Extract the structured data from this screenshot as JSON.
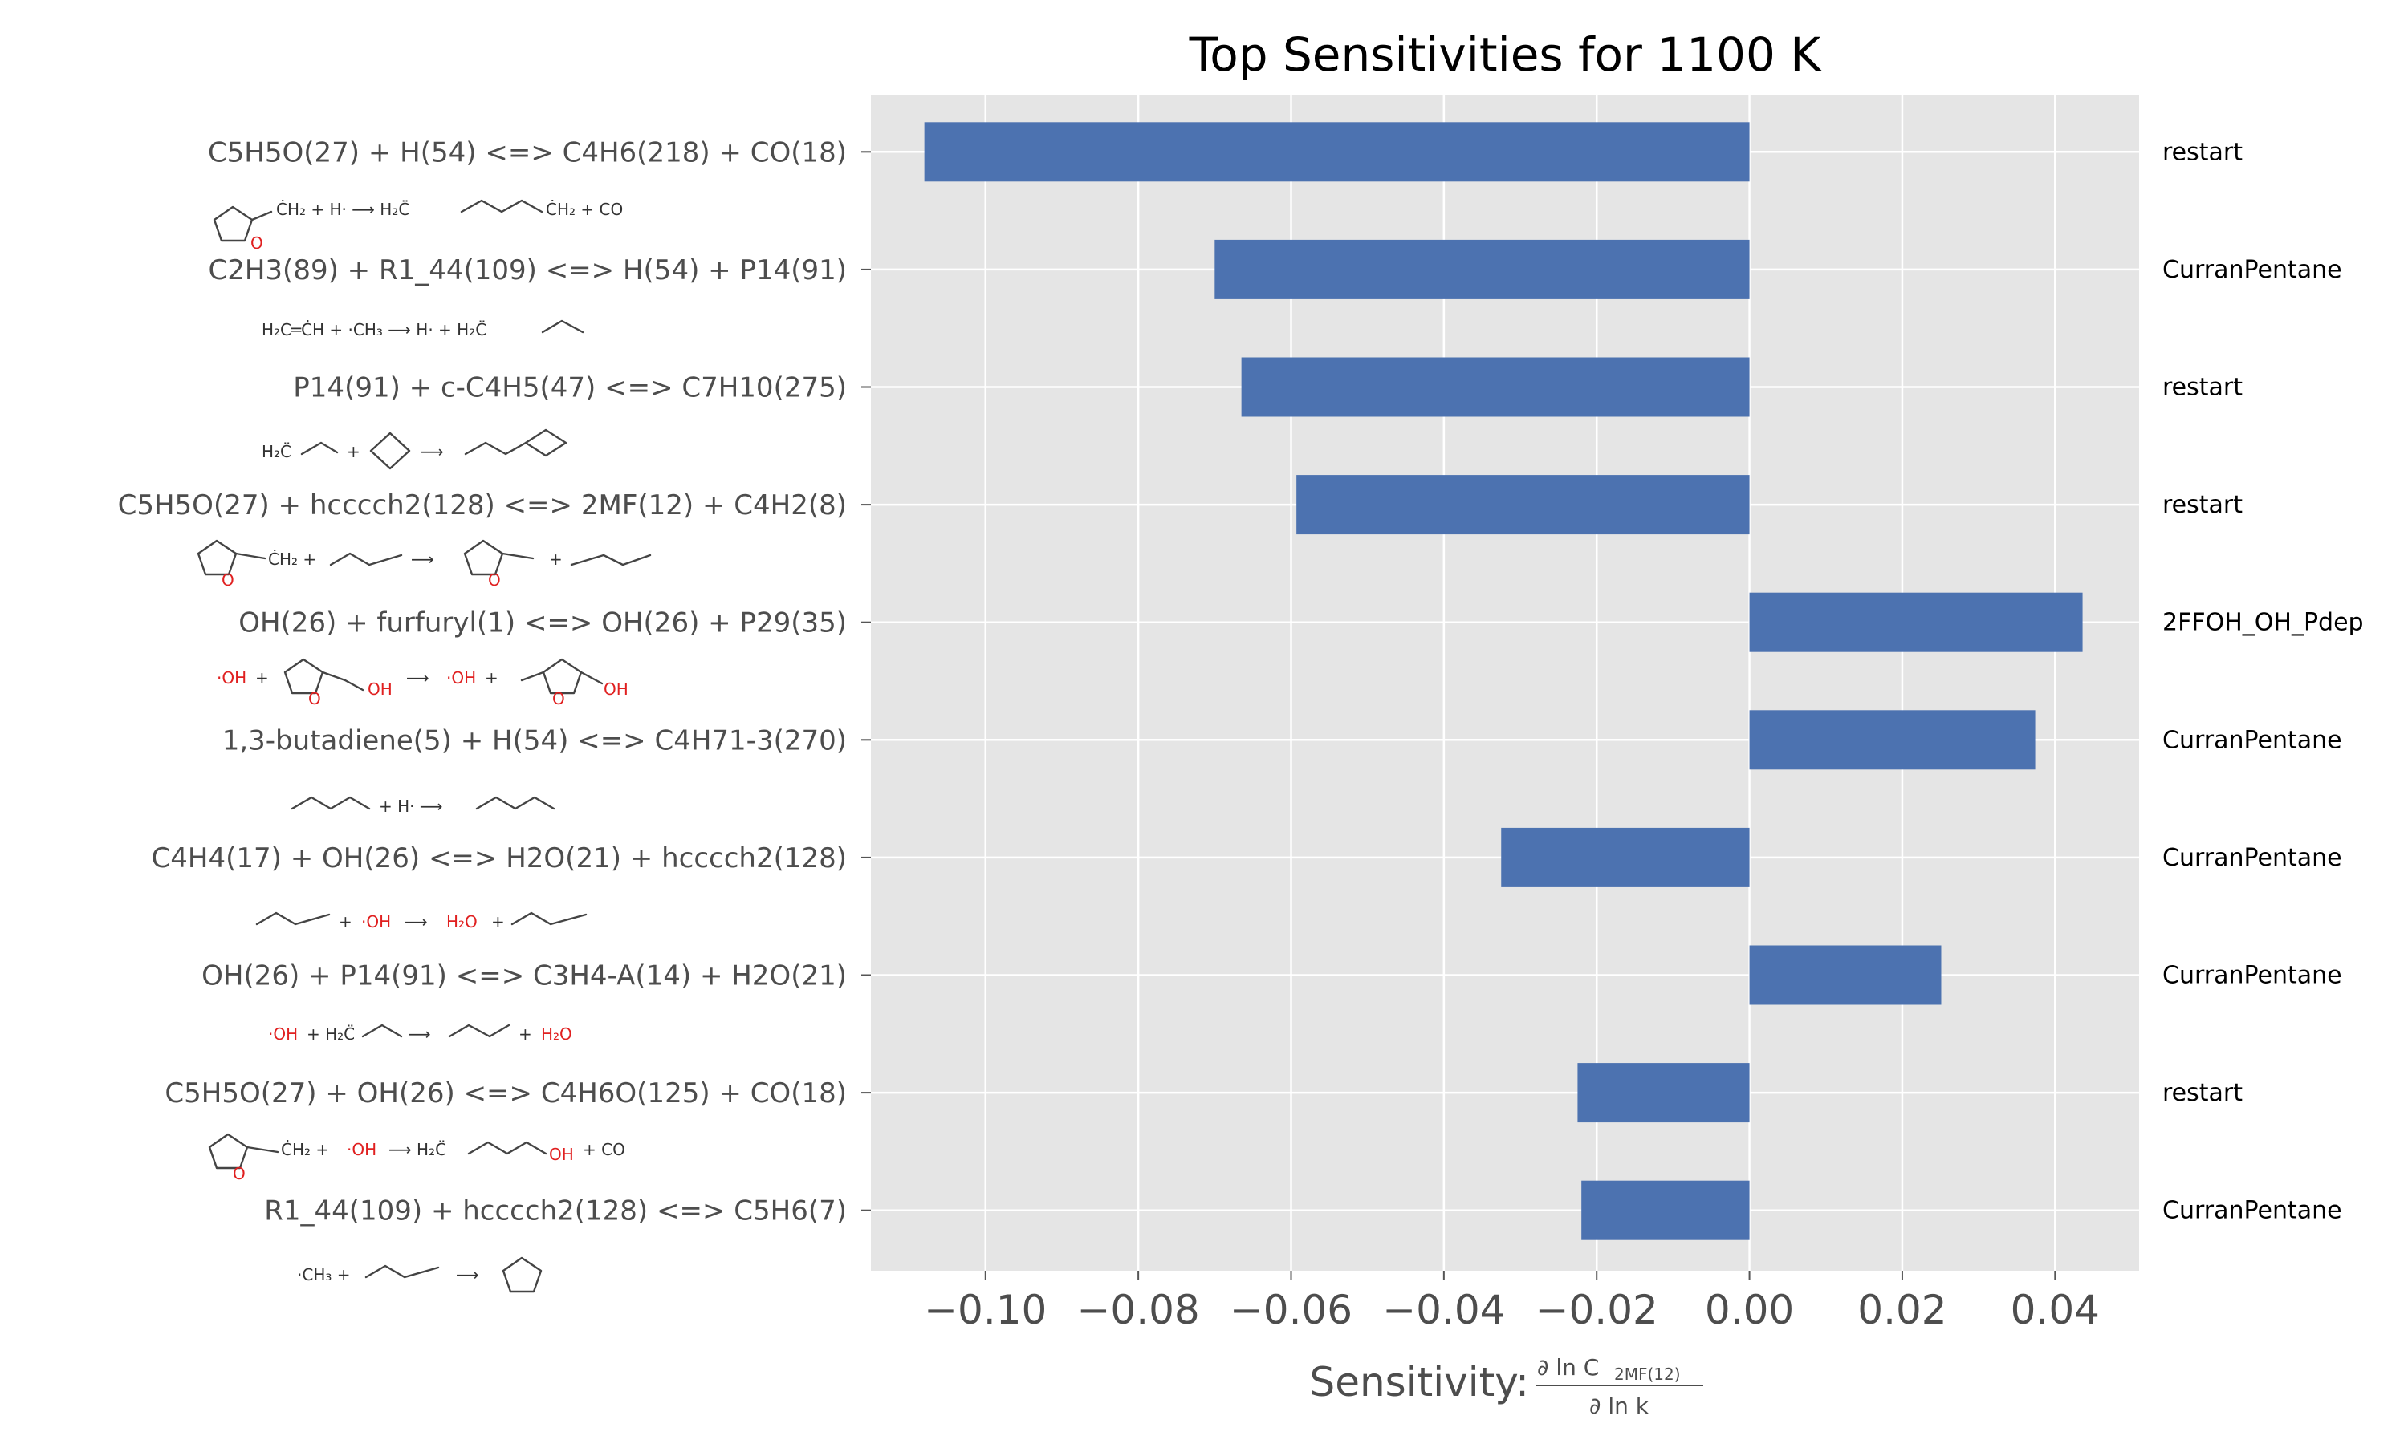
{
  "chart_data": {
    "type": "bar",
    "orientation": "horizontal",
    "title": "Top Sensitivities for 1100 K",
    "xlabel": "Sensitivity:",
    "xlabel_fraction": {
      "numerator": "∂ ln C",
      "numerator_sub": "2MF(12)",
      "denominator": "∂ ln k"
    },
    "xlim": [
      -0.115,
      0.051
    ],
    "xticks": [
      -0.1,
      -0.08,
      -0.06,
      -0.04,
      -0.02,
      0.0,
      0.02,
      0.04
    ],
    "xtick_labels": [
      "−0.10",
      "−0.08",
      "−0.06",
      "−0.04",
      "−0.02",
      "0.00",
      "0.02",
      "0.04"
    ],
    "grid": true,
    "bar_color": "#4c72b0",
    "background_color": "#e5e5e5",
    "categories": [
      "C5H5O(27) + H(54) <=> C4H6(218) + CO(18)",
      "C2H3(89) + R1_44(109) <=> H(54) + P14(91)",
      "P14(91) + c-C4H5(47) <=> C7H10(275)",
      "C5H5O(27) + hcccch2(128) <=> 2MF(12) + C4H2(8)",
      "OH(26) + furfuryl(1) <=> OH(26) + P29(35)",
      "1,3-butadiene(5) + H(54) <=> C4H71-3(270)",
      "C4H4(17) + OH(26) <=> H2O(21) + hcccch2(128)",
      "OH(26) + P14(91) <=> C3H4-A(14) + H2O(21)",
      "C5H5O(27) + OH(26) <=> C4H6O(125) + CO(18)",
      "R1_44(109) + hcccch2(128) <=> C5H6(7)"
    ],
    "values": [
      -0.108,
      -0.07,
      -0.0665,
      -0.0593,
      0.0436,
      0.0374,
      -0.0325,
      0.0251,
      -0.0225,
      -0.022
    ],
    "sources": [
      "restart",
      "CurranPentane",
      "restart",
      "restart",
      "2FFOH_OH_Pdep",
      "CurranPentane",
      "CurranPentane",
      "CurranPentane",
      "restart",
      "CurranPentane"
    ]
  }
}
